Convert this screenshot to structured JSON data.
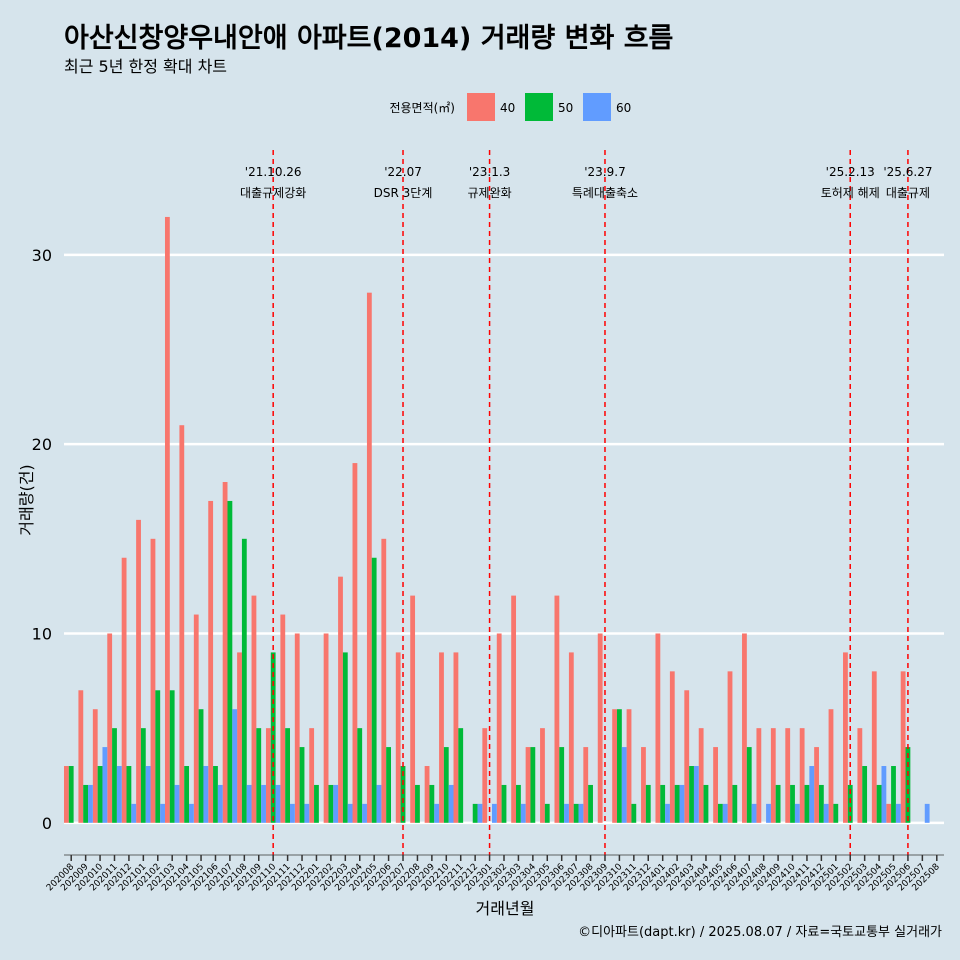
{
  "title": "아산신창양우내안애 아파트(2014) 거래량 변화 흐름",
  "subtitle": "최근 5년 한정 확대 차트",
  "caption": "©디아파트(dapt.kr) / 2025.08.07 / 자료=국토교통부 실거래가",
  "chart_data": {
    "type": "bar",
    "xlabel": "거래년월",
    "ylabel": "거래량(건)",
    "ylim": [
      -1.7,
      35.8
    ],
    "yticks": [
      0,
      10,
      20,
      30
    ],
    "grid": true,
    "legend": {
      "title": "전용면적(㎡)",
      "position": "top",
      "entries": [
        {
          "label": "40",
          "color": "#f8766d"
        },
        {
          "label": "50",
          "color": "#00ba38"
        },
        {
          "label": "60",
          "color": "#619cff"
        }
      ]
    },
    "categories": [
      "202008",
      "202009",
      "202010",
      "202011",
      "202012",
      "202101",
      "202102",
      "202103",
      "202104",
      "202105",
      "202106",
      "202107",
      "202108",
      "202109",
      "202110",
      "202111",
      "202112",
      "202201",
      "202202",
      "202203",
      "202204",
      "202205",
      "202206",
      "202207",
      "202208",
      "202209",
      "202210",
      "202211",
      "202212",
      "202301",
      "202302",
      "202303",
      "202304",
      "202305",
      "202306",
      "202307",
      "202308",
      "202309",
      "202310",
      "202311",
      "202312",
      "202401",
      "202402",
      "202403",
      "202404",
      "202405",
      "202406",
      "202407",
      "202408",
      "202409",
      "202410",
      "202411",
      "202412",
      "202501",
      "202502",
      "202503",
      "202504",
      "202505",
      "202506",
      "202507",
      "202508"
    ],
    "series": [
      {
        "name": "40",
        "color": "#f8766d",
        "values": [
          3,
          7,
          6,
          10,
          14,
          16,
          15,
          32,
          21,
          11,
          17,
          18,
          9,
          12,
          5,
          11,
          10,
          5,
          10,
          13,
          19,
          28,
          15,
          9,
          12,
          3,
          9,
          9,
          0,
          5,
          10,
          12,
          4,
          5,
          12,
          9,
          4,
          10,
          6,
          6,
          4,
          10,
          8,
          7,
          5,
          4,
          8,
          10,
          5,
          5,
          5,
          5,
          4,
          6,
          9,
          5,
          8,
          1,
          8,
          0,
          0
        ]
      },
      {
        "name": "50",
        "color": "#00ba38",
        "values": [
          3,
          2,
          3,
          5,
          3,
          5,
          7,
          7,
          3,
          6,
          3,
          17,
          15,
          5,
          9,
          5,
          4,
          2,
          2,
          9,
          5,
          14,
          4,
          3,
          2,
          2,
          4,
          5,
          1,
          0,
          2,
          2,
          4,
          1,
          4,
          1,
          2,
          0,
          6,
          1,
          2,
          2,
          2,
          3,
          2,
          1,
          2,
          4,
          0,
          2,
          2,
          2,
          2,
          1,
          2,
          3,
          2,
          3,
          4,
          0,
          0
        ]
      },
      {
        "name": "60",
        "color": "#619cff",
        "values": [
          0,
          2,
          4,
          3,
          1,
          3,
          1,
          2,
          1,
          3,
          2,
          6,
          2,
          2,
          2,
          1,
          1,
          0,
          2,
          1,
          1,
          2,
          0,
          0,
          0,
          1,
          2,
          0,
          1,
          1,
          0,
          1,
          0,
          0,
          1,
          1,
          0,
          0,
          4,
          0,
          0,
          1,
          2,
          3,
          0,
          1,
          0,
          1,
          1,
          0,
          1,
          3,
          1,
          0,
          0,
          0,
          3,
          1,
          0,
          1,
          0
        ]
      }
    ],
    "annotations": [
      {
        "date": "'21.10.26",
        "label": "대출규제강화",
        "category": "202110"
      },
      {
        "date": "'22.07",
        "label": "DSR 3단계",
        "category": "202207"
      },
      {
        "date": "'23.1.3",
        "label": "규제완화",
        "category": "202301"
      },
      {
        "date": "'23.9.7",
        "label": "특례대출축소",
        "category": "202309"
      },
      {
        "date": "'25.2.13",
        "label": "토허제 해제",
        "category": "202502"
      },
      {
        "date": "'25.6.27",
        "label": "대출규제",
        "category": "202506"
      }
    ]
  }
}
